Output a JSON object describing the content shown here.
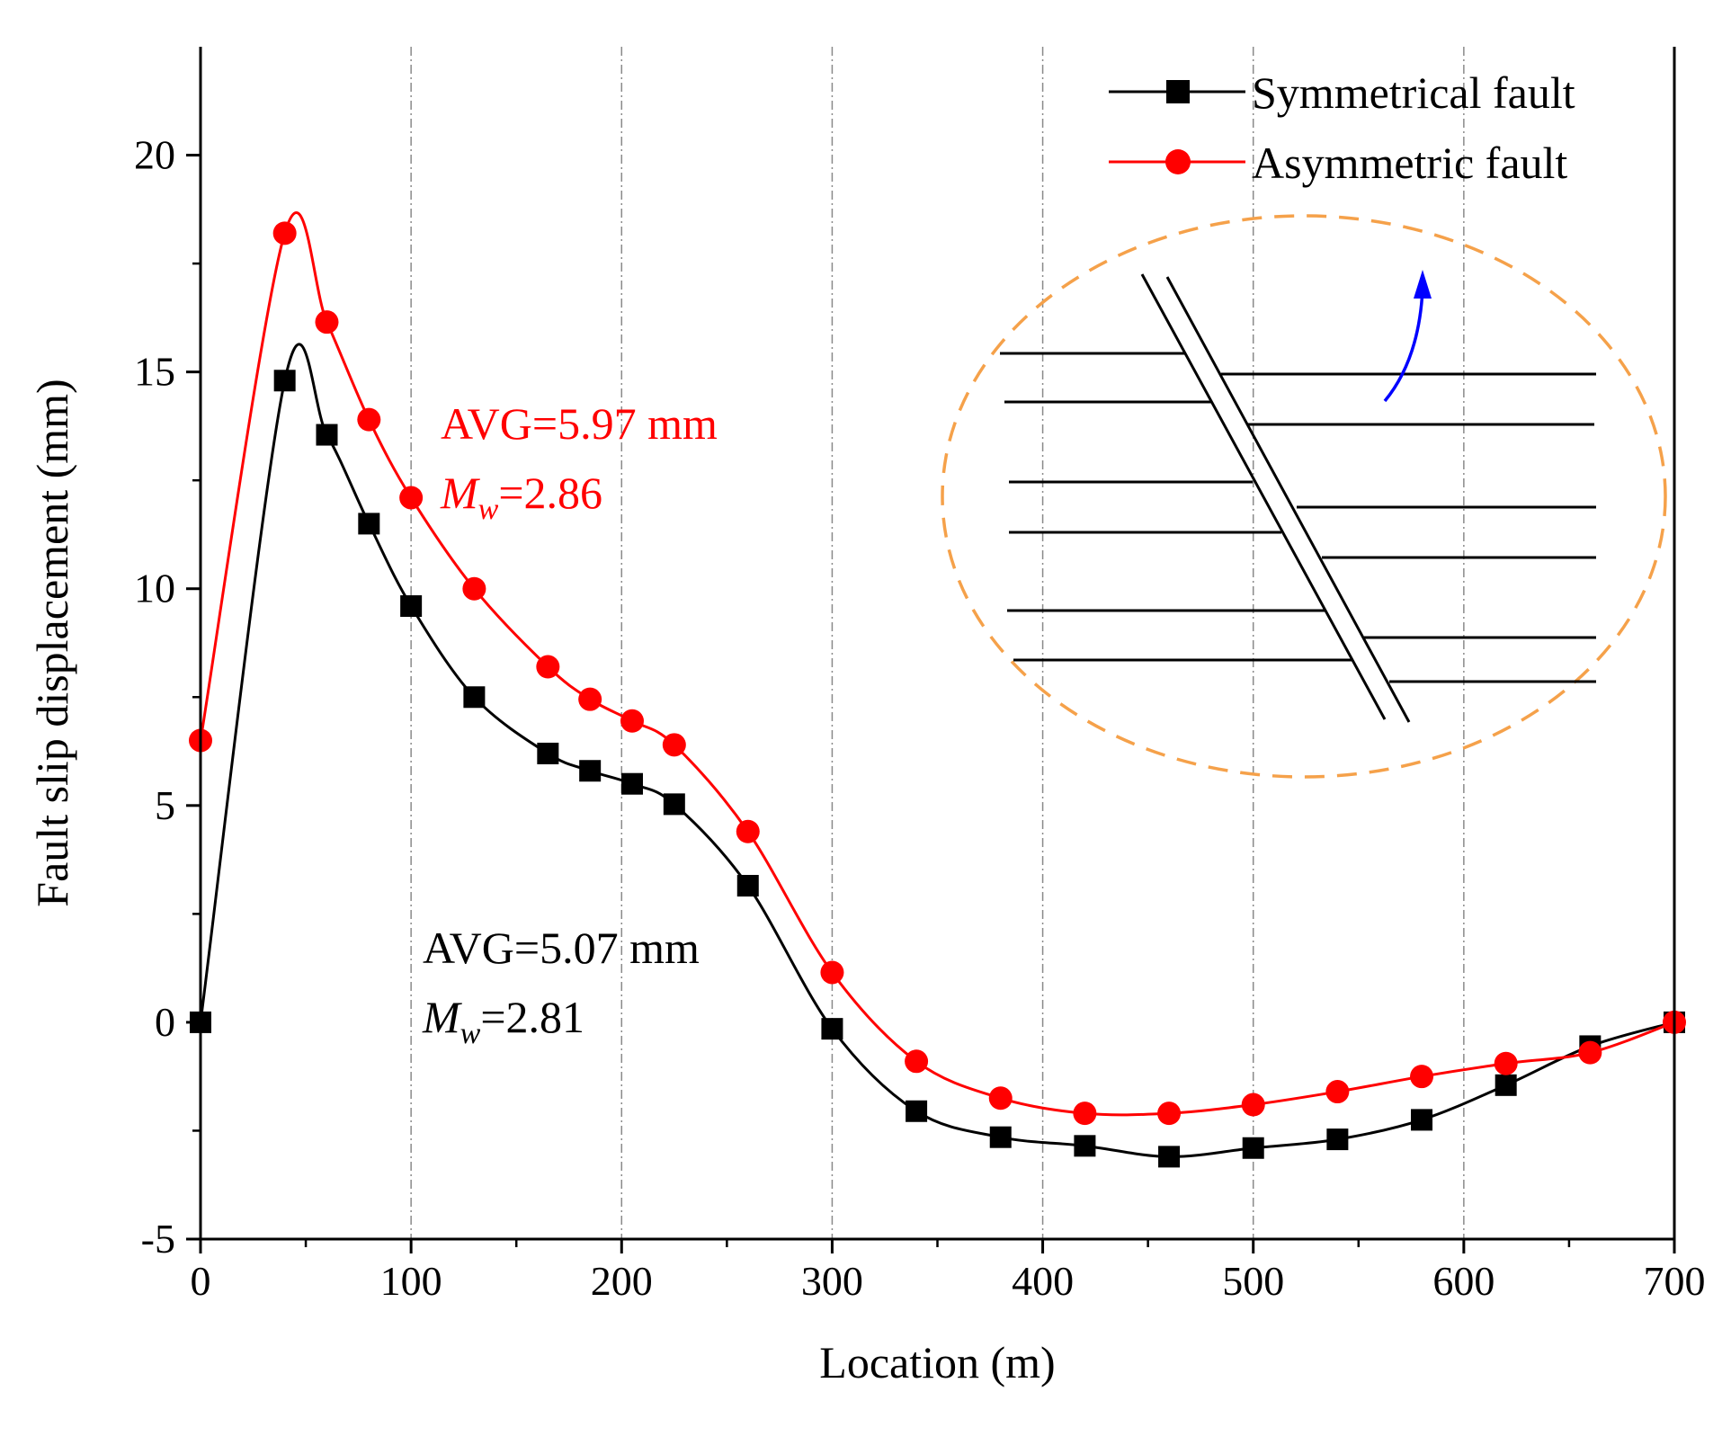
{
  "chart_data": {
    "type": "line",
    "title": "",
    "xlabel": "Location (m)",
    "ylabel": "Fault slip displacement (mm)",
    "xlim": [
      0,
      700
    ],
    "ylim": [
      -5,
      22.5
    ],
    "x_ticks": [
      0,
      100,
      200,
      300,
      400,
      500,
      600,
      700
    ],
    "y_ticks": [
      -5,
      0,
      5,
      10,
      15,
      20
    ],
    "x_tick_labels": [
      "0",
      "100",
      "200",
      "300",
      "400",
      "500",
      "600",
      "700"
    ],
    "y_tick_labels": [
      "-5",
      "0",
      "5",
      "10",
      "15",
      "20"
    ],
    "vertical_grid": [
      100,
      200,
      300,
      400,
      500,
      600
    ],
    "legend_position": "top-right",
    "series": [
      {
        "name": "Symmetrical fault",
        "color": "#000000",
        "marker": "square",
        "x": [
          0,
          40,
          60,
          80,
          100,
          130,
          165,
          185,
          205,
          225,
          260,
          300,
          340,
          380,
          420,
          460,
          500,
          540,
          580,
          620,
          660,
          700
        ],
        "values": [
          0,
          14.8,
          13.55,
          11.5,
          9.6,
          7.5,
          6.2,
          5.8,
          5.5,
          5.03,
          3.15,
          -0.15,
          -2.05,
          -2.65,
          -2.85,
          -3.1,
          -2.9,
          -2.7,
          -2.25,
          -1.45,
          -0.55,
          0
        ]
      },
      {
        "name": "Asymmetric fault",
        "color": "#ff0000",
        "marker": "circle",
        "x": [
          0,
          40,
          60,
          80,
          100,
          130,
          165,
          185,
          205,
          225,
          260,
          300,
          340,
          380,
          420,
          460,
          500,
          540,
          580,
          620,
          660,
          700
        ],
        "values": [
          6.5,
          18.2,
          16.15,
          13.9,
          12.1,
          10.0,
          8.2,
          7.45,
          6.95,
          6.4,
          4.4,
          1.15,
          -0.9,
          -1.75,
          -2.1,
          -2.1,
          -1.9,
          -1.6,
          -1.25,
          -0.95,
          -0.7,
          0
        ]
      }
    ],
    "annotations": [
      {
        "id": "asym_avg",
        "text": "AVG=5.97 mm",
        "color": "#ff0000"
      },
      {
        "id": "asym_mw_symbol",
        "text": "M",
        "subscript": "w",
        "value": "=2.86",
        "color": "#ff0000"
      },
      {
        "id": "sym_avg",
        "text": "AVG=5.07 mm",
        "color": "#000000"
      },
      {
        "id": "sym_mw_symbol",
        "text": "M",
        "subscript": "w",
        "value": "=2.81",
        "color": "#000000"
      }
    ],
    "inset": {
      "description_name": "fault-schematic",
      "outline_color": "#f5a14a",
      "arrow_color": "#0000ff"
    }
  }
}
